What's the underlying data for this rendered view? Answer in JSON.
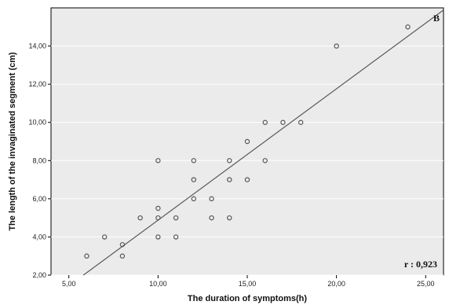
{
  "chart_data": {
    "type": "scatter",
    "xlabel": "The duration of symptoms(h)",
    "ylabel": "The length of the invaginated segment (cm)",
    "xlim": [
      4,
      26
    ],
    "ylim": [
      2,
      16
    ],
    "x_ticks": [
      "5,00",
      "10,00",
      "15,00",
      "20,00",
      "25,00"
    ],
    "x_tick_values": [
      5,
      10,
      15,
      20,
      25
    ],
    "y_ticks": [
      "2,00",
      "4,00",
      "6,00",
      "8,00",
      "10,00",
      "12,00",
      "14,00"
    ],
    "y_tick_values": [
      2,
      4,
      6,
      8,
      10,
      12,
      14
    ],
    "panel_label": "B",
    "annotation": "r : 0,923",
    "plot_background": "#ebebeb",
    "marker_color": "#555555",
    "line_color": "#5a5a5a",
    "series": [
      {
        "marker": "open-circle",
        "points": [
          [
            6,
            3
          ],
          [
            7,
            4
          ],
          [
            8,
            3
          ],
          [
            8,
            3.6
          ],
          [
            9,
            5
          ],
          [
            10,
            4
          ],
          [
            10,
            5
          ],
          [
            10,
            5.5
          ],
          [
            10,
            8
          ],
          [
            11,
            4
          ],
          [
            11,
            5
          ],
          [
            12,
            6
          ],
          [
            12,
            7
          ],
          [
            12,
            8
          ],
          [
            13,
            5
          ],
          [
            13,
            6
          ],
          [
            14,
            5
          ],
          [
            14,
            7
          ],
          [
            14,
            8
          ],
          [
            15,
            7
          ],
          [
            15,
            9
          ],
          [
            16,
            8
          ],
          [
            16,
            10
          ],
          [
            17,
            10
          ],
          [
            18,
            10
          ],
          [
            20,
            14
          ],
          [
            24,
            15
          ]
        ]
      }
    ],
    "fit_line": {
      "intercept": -2.0,
      "slope": 0.688
    }
  }
}
